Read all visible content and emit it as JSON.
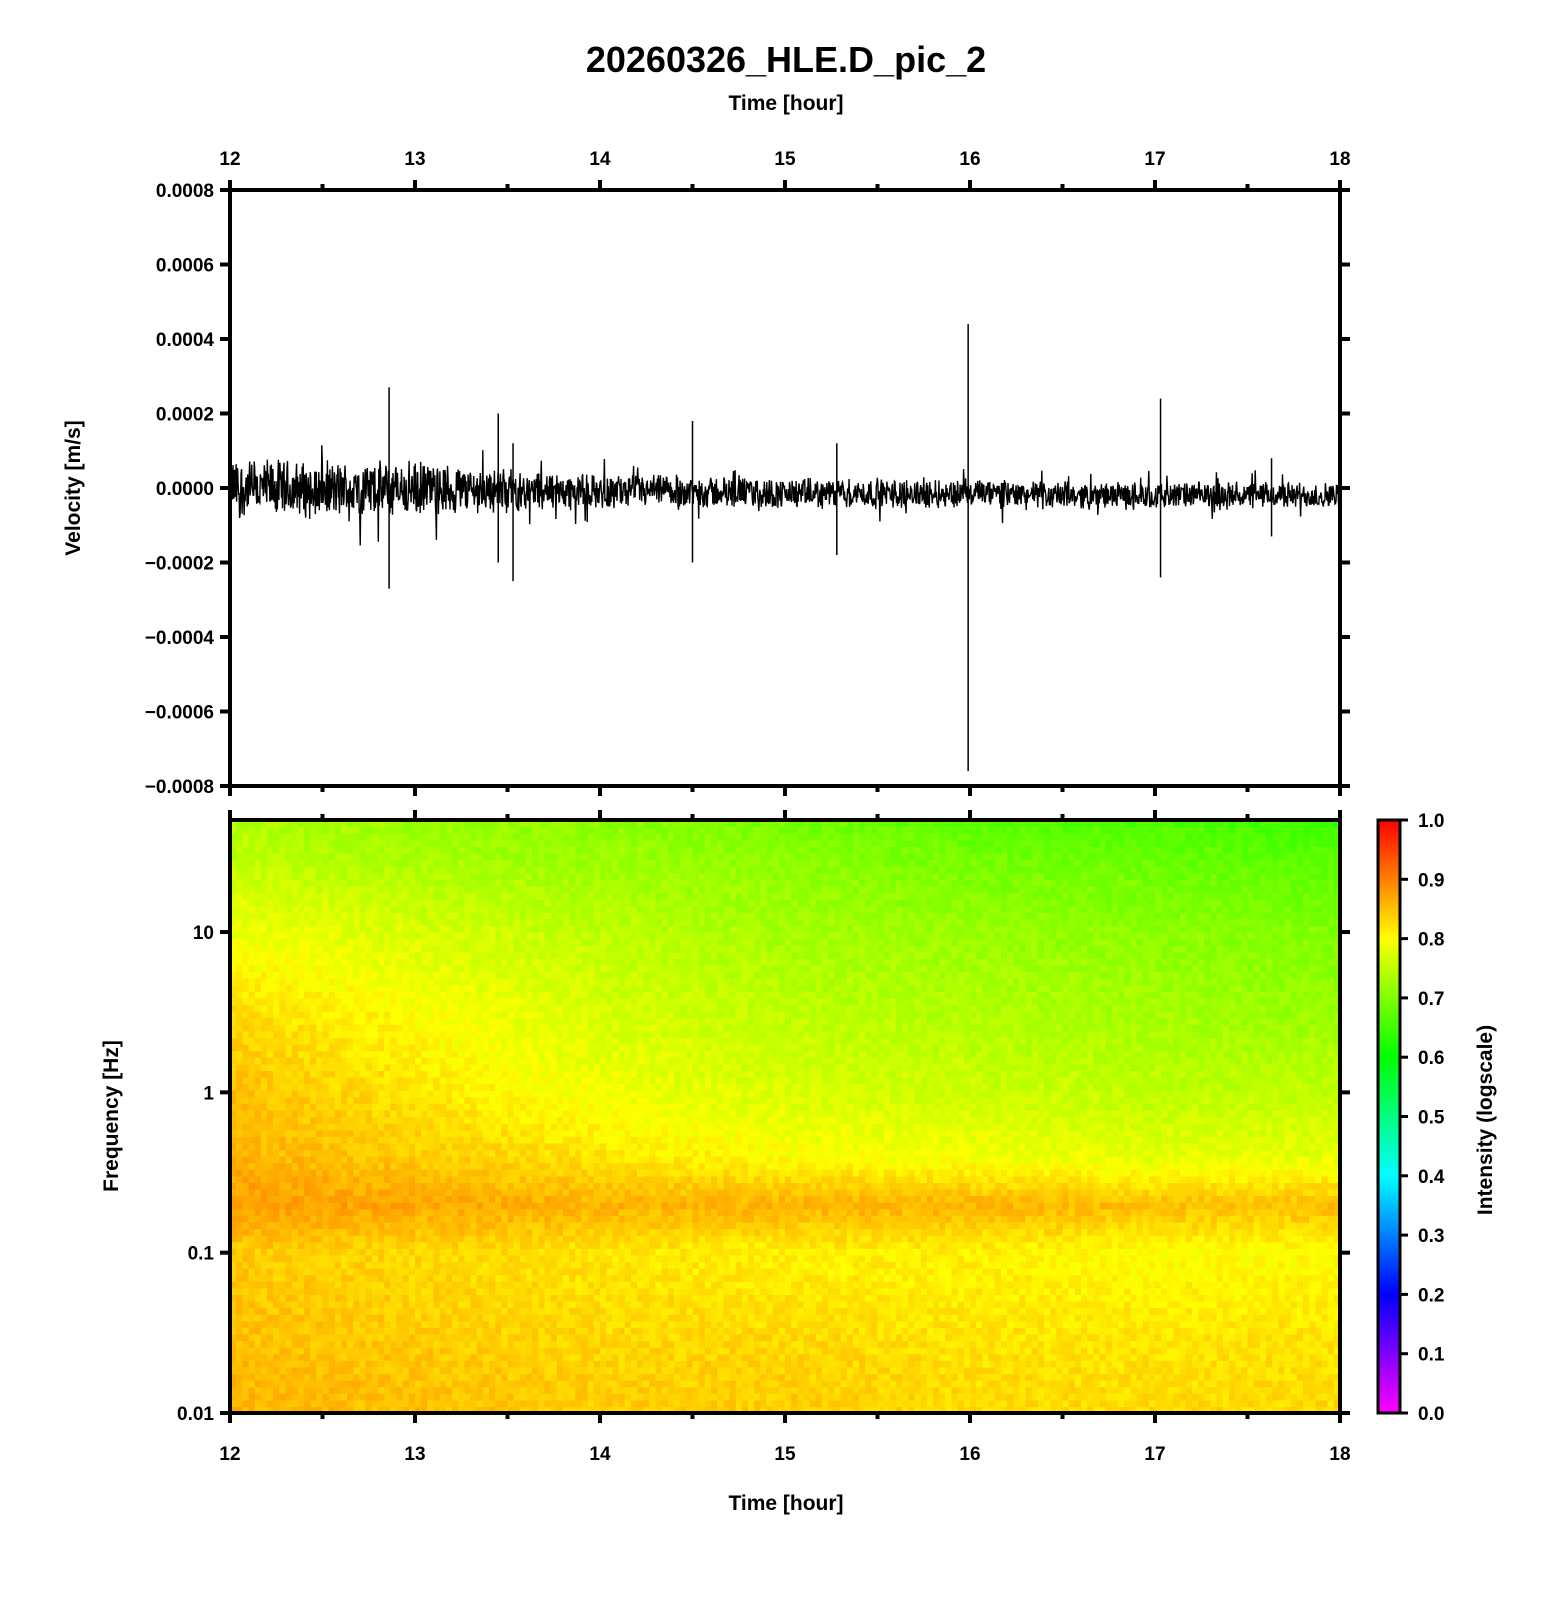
{
  "chart_data": [
    {
      "type": "line",
      "panel": "waveform",
      "title": "20260326_HLE.D_pic_2",
      "xlabel": "Time [hour]",
      "ylabel": "Velocity [m/s]",
      "xlim": [
        12,
        18
      ],
      "ylim": [
        -0.0008,
        0.0008
      ],
      "x_ticks": [
        "12",
        "13",
        "14",
        "15",
        "16",
        "17",
        "18"
      ],
      "y_ticks": [
        "0.0008",
        "0.0006",
        "0.0004",
        "0.0002",
        "0.0000",
        "−0.0002",
        "−0.0004",
        "−0.0006",
        "−0.0008"
      ],
      "grid": false,
      "color": "#000000",
      "noise_envelope": {
        "x": [
          12.0,
          12.5,
          13.0,
          13.5,
          14.0,
          14.5,
          15.0,
          15.5,
          16.0,
          16.5,
          17.0,
          17.5,
          18.0
        ],
        "upper": [
          9e-05,
          8e-05,
          8e-05,
          6e-05,
          4e-05,
          4e-05,
          3e-05,
          3e-05,
          3e-05,
          2e-05,
          2e-05,
          2e-05,
          2e-05
        ],
        "lower": [
          -9e-05,
          -9e-05,
          -9e-05,
          -7e-05,
          -6e-05,
          -6e-05,
          -6e-05,
          -6e-05,
          -6e-05,
          -6e-05,
          -6e-05,
          -6e-05,
          -6e-05
        ]
      },
      "spikes": [
        {
          "x": 12.86,
          "max": 0.00027,
          "min": -0.00027
        },
        {
          "x": 13.45,
          "max": 0.0002,
          "min": -0.0002
        },
        {
          "x": 13.53,
          "max": 0.00012,
          "min": -0.00025
        },
        {
          "x": 14.5,
          "max": 0.00018,
          "min": -0.0002
        },
        {
          "x": 15.28,
          "max": 0.00012,
          "min": -0.00018
        },
        {
          "x": 15.99,
          "max": 0.00044,
          "min": -0.00076
        },
        {
          "x": 17.03,
          "max": 0.00024,
          "min": -0.00024
        },
        {
          "x": 17.63,
          "max": 8e-05,
          "min": -0.00013
        }
      ]
    },
    {
      "type": "heatmap",
      "panel": "spectrogram",
      "xlabel": "Time [hour]",
      "ylabel": "Frequency [Hz]",
      "xlim": [
        12,
        18
      ],
      "ylim": [
        0.01,
        50
      ],
      "y_scale": "log",
      "x_ticks": [
        "12",
        "13",
        "14",
        "15",
        "16",
        "17",
        "18"
      ],
      "y_ticks": [
        "0.01",
        "0.1",
        "1",
        "10"
      ],
      "colorbar": {
        "label": "Intensity (logscale)",
        "range": [
          0.0,
          1.0
        ],
        "ticks": [
          "0.0",
          "0.1",
          "0.2",
          "0.3",
          "0.4",
          "0.5",
          "0.6",
          "0.7",
          "0.8",
          "0.9",
          "1.0"
        ],
        "colors": [
          "#ff00ff",
          "#0000ff",
          "#00ffff",
          "#00ff00",
          "#ffff00",
          "#ff0000"
        ]
      },
      "x": [
        12,
        13,
        14,
        15,
        16,
        17,
        18
      ],
      "frequency": [
        0.01,
        0.03,
        0.1,
        0.2,
        0.4,
        1,
        3,
        10,
        30,
        50
      ],
      "intensity": [
        [
          0.86,
          0.85,
          0.84,
          0.84,
          0.83,
          0.83,
          0.83
        ],
        [
          0.85,
          0.84,
          0.83,
          0.83,
          0.82,
          0.82,
          0.82
        ],
        [
          0.84,
          0.83,
          0.82,
          0.81,
          0.81,
          0.8,
          0.8
        ],
        [
          0.88,
          0.87,
          0.86,
          0.86,
          0.86,
          0.85,
          0.85
        ],
        [
          0.86,
          0.84,
          0.82,
          0.8,
          0.79,
          0.78,
          0.78
        ],
        [
          0.85,
          0.82,
          0.79,
          0.77,
          0.76,
          0.75,
          0.75
        ],
        [
          0.83,
          0.8,
          0.77,
          0.75,
          0.74,
          0.73,
          0.72
        ],
        [
          0.79,
          0.77,
          0.75,
          0.73,
          0.72,
          0.71,
          0.7
        ],
        [
          0.75,
          0.73,
          0.72,
          0.71,
          0.69,
          0.68,
          0.67
        ],
        [
          0.74,
          0.72,
          0.71,
          0.69,
          0.67,
          0.66,
          0.64
        ]
      ]
    }
  ]
}
